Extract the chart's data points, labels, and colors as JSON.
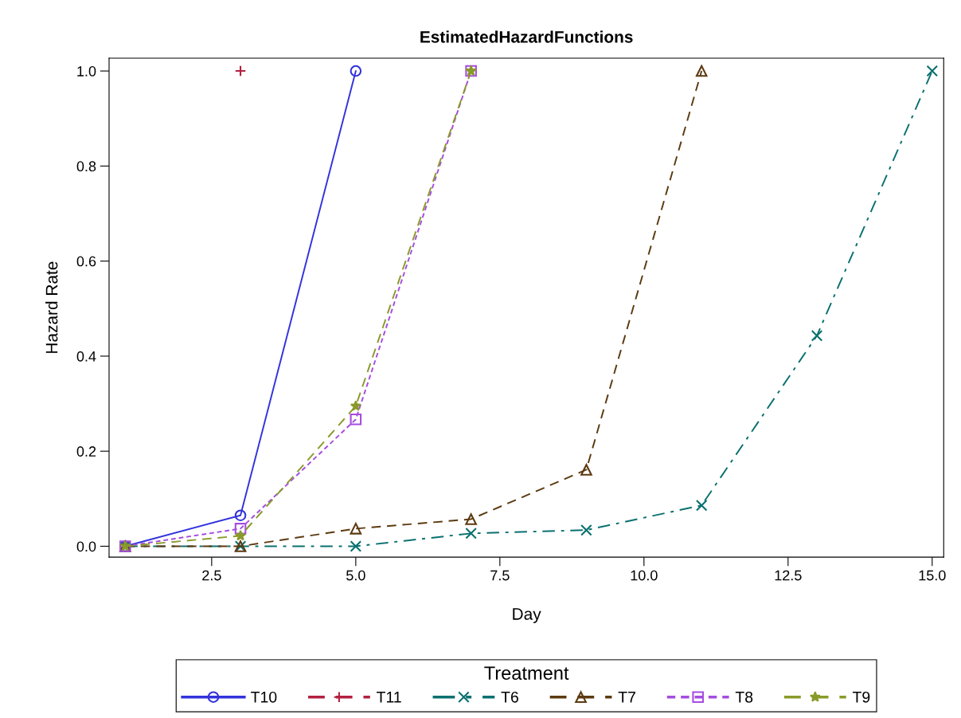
{
  "chart_data": {
    "type": "line",
    "title": "EstimatedHazardFunctions",
    "xlabel": "Day",
    "ylabel": "Hazard Rate",
    "legend_title": "Treatment",
    "x": [
      1,
      3,
      5,
      7,
      9,
      11,
      13,
      15
    ],
    "series": [
      {
        "name": "T10",
        "color": "#3333dd",
        "marker": "circle",
        "line_style": "solid",
        "values": [
          0,
          0.065,
          1.0,
          null,
          null,
          null,
          null,
          null
        ]
      },
      {
        "name": "T11",
        "color": "#b22040",
        "marker": "plus",
        "line_style": "dashed",
        "values": [
          null,
          1.0,
          null,
          null,
          null,
          null,
          null,
          null
        ]
      },
      {
        "name": "T6",
        "color": "#0a7070",
        "marker": "cross",
        "line_style": "dashdot",
        "values": [
          0,
          0,
          0,
          0.027,
          0.034,
          0.086,
          0.443,
          1.0
        ]
      },
      {
        "name": "T7",
        "color": "#5c3a10",
        "marker": "triangle",
        "line_style": "dashed",
        "values": [
          0,
          0,
          0.037,
          0.057,
          0.161,
          1.0,
          null,
          null
        ]
      },
      {
        "name": "T8",
        "color": "#a64ce0",
        "marker": "square",
        "line_style": "dotted",
        "values": [
          0,
          0.037,
          0.267,
          1.0,
          null,
          null,
          null,
          null
        ]
      },
      {
        "name": "T9",
        "color": "#8a9a2a",
        "marker": "star",
        "line_style": "dashed",
        "values": [
          0,
          0.022,
          0.295,
          1.0,
          null,
          null,
          null,
          null
        ]
      }
    ],
    "xlim": [
      0.72,
      15.2
    ],
    "ylim": [
      -0.023,
      1.027
    ],
    "xticks": [
      {
        "value": 2.5,
        "label": "2.5"
      },
      {
        "value": 5,
        "label": "5.0"
      },
      {
        "value": 7.5,
        "label": "7.5"
      },
      {
        "value": 10,
        "label": "10.0"
      },
      {
        "value": 12.5,
        "label": "12.5"
      },
      {
        "value": 15,
        "label": "15.0"
      }
    ],
    "yticks": [
      {
        "value": 0,
        "label": "0.0"
      },
      {
        "value": 0.2,
        "label": "0.2"
      },
      {
        "value": 0.4,
        "label": "0.4"
      },
      {
        "value": 0.6,
        "label": "0.6"
      },
      {
        "value": 0.8,
        "label": "0.8"
      },
      {
        "value": 1,
        "label": "1.0"
      }
    ],
    "grid": false,
    "legend": "bottom"
  }
}
